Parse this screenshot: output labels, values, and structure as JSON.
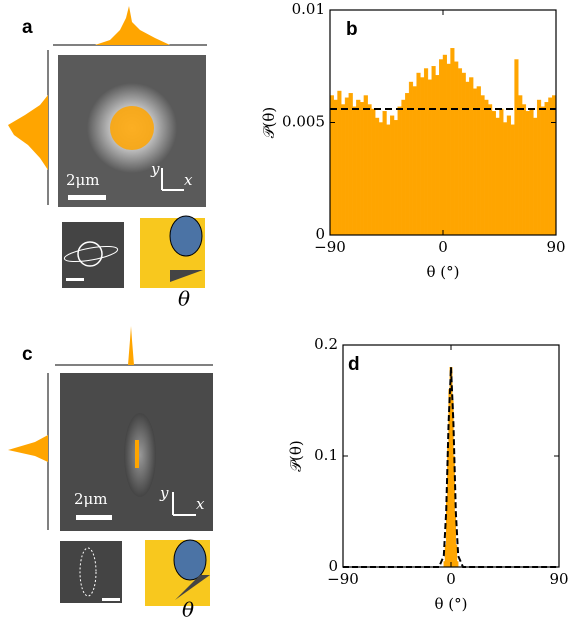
{
  "panel_labels": [
    "a",
    "b",
    "c",
    "d"
  ],
  "image_panels": [
    {
      "scale_bar": "2μm",
      "y_axis": "y",
      "x_axis": "x",
      "angle_symbol": "θ"
    },
    {
      "scale_bar": "2μm",
      "y_axis": "y",
      "x_axis": "x",
      "angle_symbol": "θ"
    }
  ],
  "chart_data": [
    {
      "type": "histogram",
      "color": "#ffa500",
      "xlabel": "θ (°)",
      "ylabel": "𝒫(θ)",
      "bins": [
        -90,
        -87,
        -84,
        -81,
        -78,
        -75,
        -72,
        -69,
        -66,
        -63,
        -60,
        -57,
        -54,
        -51,
        -48,
        -45,
        -42,
        -39,
        -36,
        -33,
        -30,
        -27,
        -24,
        -21,
        -18,
        -15,
        -12,
        -9,
        -6,
        -3,
        0,
        3,
        6,
        9,
        12,
        15,
        18,
        21,
        24,
        27,
        30,
        33,
        36,
        39,
        42,
        45,
        48,
        51,
        54,
        57,
        60,
        63,
        66,
        69,
        72,
        75,
        78,
        81,
        84,
        87,
        90
      ],
      "values": [
        0.0062,
        0.006,
        0.0064,
        0.0058,
        0.0061,
        0.0063,
        0.0057,
        0.006,
        0.0059,
        0.0062,
        0.0058,
        0.0056,
        0.0052,
        0.005,
        0.0055,
        0.0049,
        0.0053,
        0.0051,
        0.0057,
        0.006,
        0.0063,
        0.0068,
        0.0066,
        0.0072,
        0.007,
        0.0074,
        0.0069,
        0.0075,
        0.0071,
        0.0078,
        0.008,
        0.0076,
        0.0083,
        0.0077,
        0.0074,
        0.0072,
        0.0068,
        0.007,
        0.0065,
        0.0066,
        0.0062,
        0.006,
        0.0058,
        0.0055,
        0.0052,
        0.0056,
        0.005,
        0.0053,
        0.0049,
        0.0078,
        0.0062,
        0.0058,
        0.0055,
        0.0056,
        0.0052,
        0.006,
        0.0057,
        0.0059,
        0.0061,
        0.0062
      ],
      "hline": 0.0056,
      "xlim": [
        -90,
        90
      ],
      "xticks": [
        {
          "value": -90,
          "label": "−90"
        },
        0,
        90
      ],
      "ylim": [
        0,
        0.01
      ],
      "yticks": [
        0,
        0.005,
        0.01
      ]
    },
    {
      "type": "histogram",
      "color": "#ffa500",
      "xlabel": "θ (°)",
      "ylabel": "𝒫(θ)",
      "bins": [
        -6,
        -5,
        -4,
        -3,
        -2,
        -1,
        0,
        1,
        2,
        3,
        4,
        5,
        6
      ],
      "values": [
        0.005,
        0.02,
        0.06,
        0.11,
        0.16,
        0.18,
        0.18,
        0.15,
        0.1,
        0.05,
        0.02,
        0.005
      ],
      "fit": {
        "x": [
          -90,
          -10,
          -6,
          -4,
          -2,
          0,
          2,
          4,
          6,
          10,
          90
        ],
        "values": [
          0,
          0,
          0.01,
          0.05,
          0.13,
          0.18,
          0.13,
          0.05,
          0.01,
          0,
          0
        ]
      },
      "xlim": [
        -90,
        90
      ],
      "xticks": [
        {
          "value": -90,
          "label": "−90"
        },
        0,
        90
      ],
      "ylim": [
        0,
        0.2
      ],
      "yticks": [
        0,
        0.1,
        0.2
      ]
    }
  ]
}
